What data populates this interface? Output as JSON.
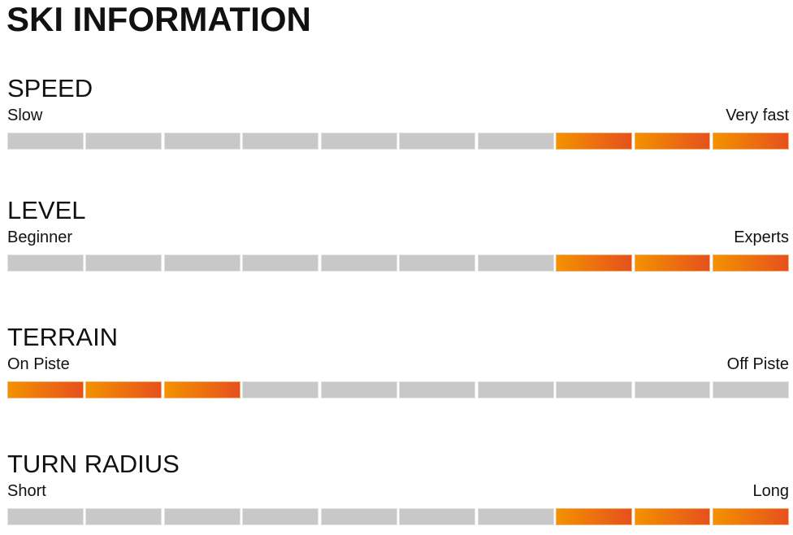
{
  "title": "SKI INFORMATION",
  "colors": {
    "filled_start": "#f39200",
    "filled_end": "#e6501e",
    "empty": "#c8c8c8"
  },
  "scales": [
    {
      "name": "SPEED",
      "low": "Slow",
      "high": "Very fast",
      "segments": 10,
      "filled": [
        8,
        9,
        10
      ]
    },
    {
      "name": "LEVEL",
      "low": "Beginner",
      "high": "Experts",
      "segments": 10,
      "filled": [
        8,
        9,
        10
      ]
    },
    {
      "name": "TERRAIN",
      "low": "On Piste",
      "high": "Off Piste",
      "segments": 10,
      "filled": [
        1,
        2,
        3
      ]
    },
    {
      "name": "TURN RADIUS",
      "low": "Short",
      "high": "Long",
      "segments": 10,
      "filled": [
        8,
        9,
        10
      ]
    }
  ]
}
